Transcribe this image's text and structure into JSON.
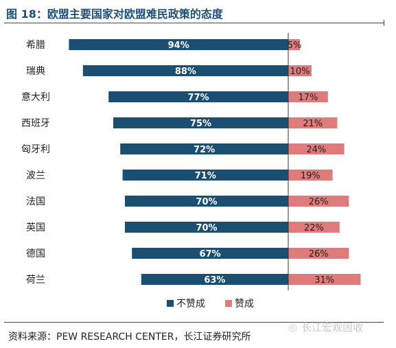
{
  "title": "图 18：欧盟主要国家对欧盟难民政策的态度",
  "source": "资料来源：PEW RESEARCH CENTER，长江证券研究所",
  "watermark": "长江宏观固收",
  "chart_data": {
    "type": "bar",
    "orientation": "horizontal-diverging",
    "title": "",
    "xlabel": "",
    "ylabel": "",
    "categories": [
      "希腊",
      "瑞典",
      "意大利",
      "西班牙",
      "匈牙利",
      "波兰",
      "法国",
      "英国",
      "德国",
      "荷兰"
    ],
    "series": [
      {
        "name": "不赞成",
        "values": [
          94,
          88,
          77,
          75,
          72,
          71,
          70,
          70,
          67,
          63
        ],
        "labels": [
          "94%",
          "88%",
          "77%",
          "75%",
          "72%",
          "71%",
          "70%",
          "70%",
          "67%",
          "63%"
        ],
        "color": "#1b4f72",
        "direction": "left"
      },
      {
        "name": "赞成",
        "values": [
          5,
          10,
          17,
          21,
          24,
          19,
          26,
          22,
          26,
          31
        ],
        "labels": [
          "5%",
          "10%",
          "17%",
          "21%",
          "24%",
          "19%",
          "26%",
          "22%",
          "26%",
          "31%"
        ],
        "color": "#e07b7b",
        "direction": "right"
      }
    ],
    "xlim": [
      -100,
      100
    ],
    "grid": false,
    "legend_position": "bottom"
  }
}
